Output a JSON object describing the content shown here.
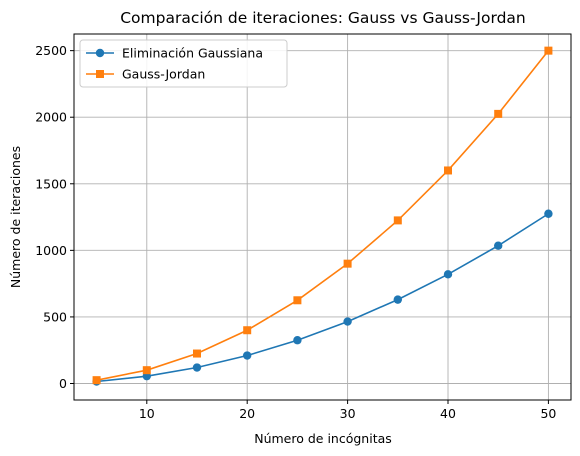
{
  "chart_data": {
    "type": "line",
    "title": "Comparación de iteraciones: Gauss vs Gauss-Jordan",
    "xlabel": "Número de incógnitas",
    "ylabel": "Número de iteraciones",
    "x": [
      5,
      10,
      15,
      20,
      25,
      30,
      35,
      40,
      45,
      50
    ],
    "xlim": [
      2.75,
      52.25
    ],
    "ylim": [
      -124,
      2625
    ],
    "xticks": [
      10,
      20,
      30,
      40,
      50
    ],
    "yticks": [
      0,
      500,
      1000,
      1500,
      2000,
      2500
    ],
    "grid": true,
    "legend_position": "upper-left",
    "series": [
      {
        "name": "Eliminación Gaussiana",
        "color": "#1f77b4",
        "marker": "circle",
        "values": [
          15,
          55,
          120,
          210,
          325,
          465,
          630,
          820,
          1035,
          1275
        ]
      },
      {
        "name": "Gauss-Jordan",
        "color": "#ff7f0e",
        "marker": "square",
        "values": [
          25,
          100,
          225,
          400,
          625,
          900,
          1225,
          1600,
          2025,
          2500
        ]
      }
    ]
  }
}
